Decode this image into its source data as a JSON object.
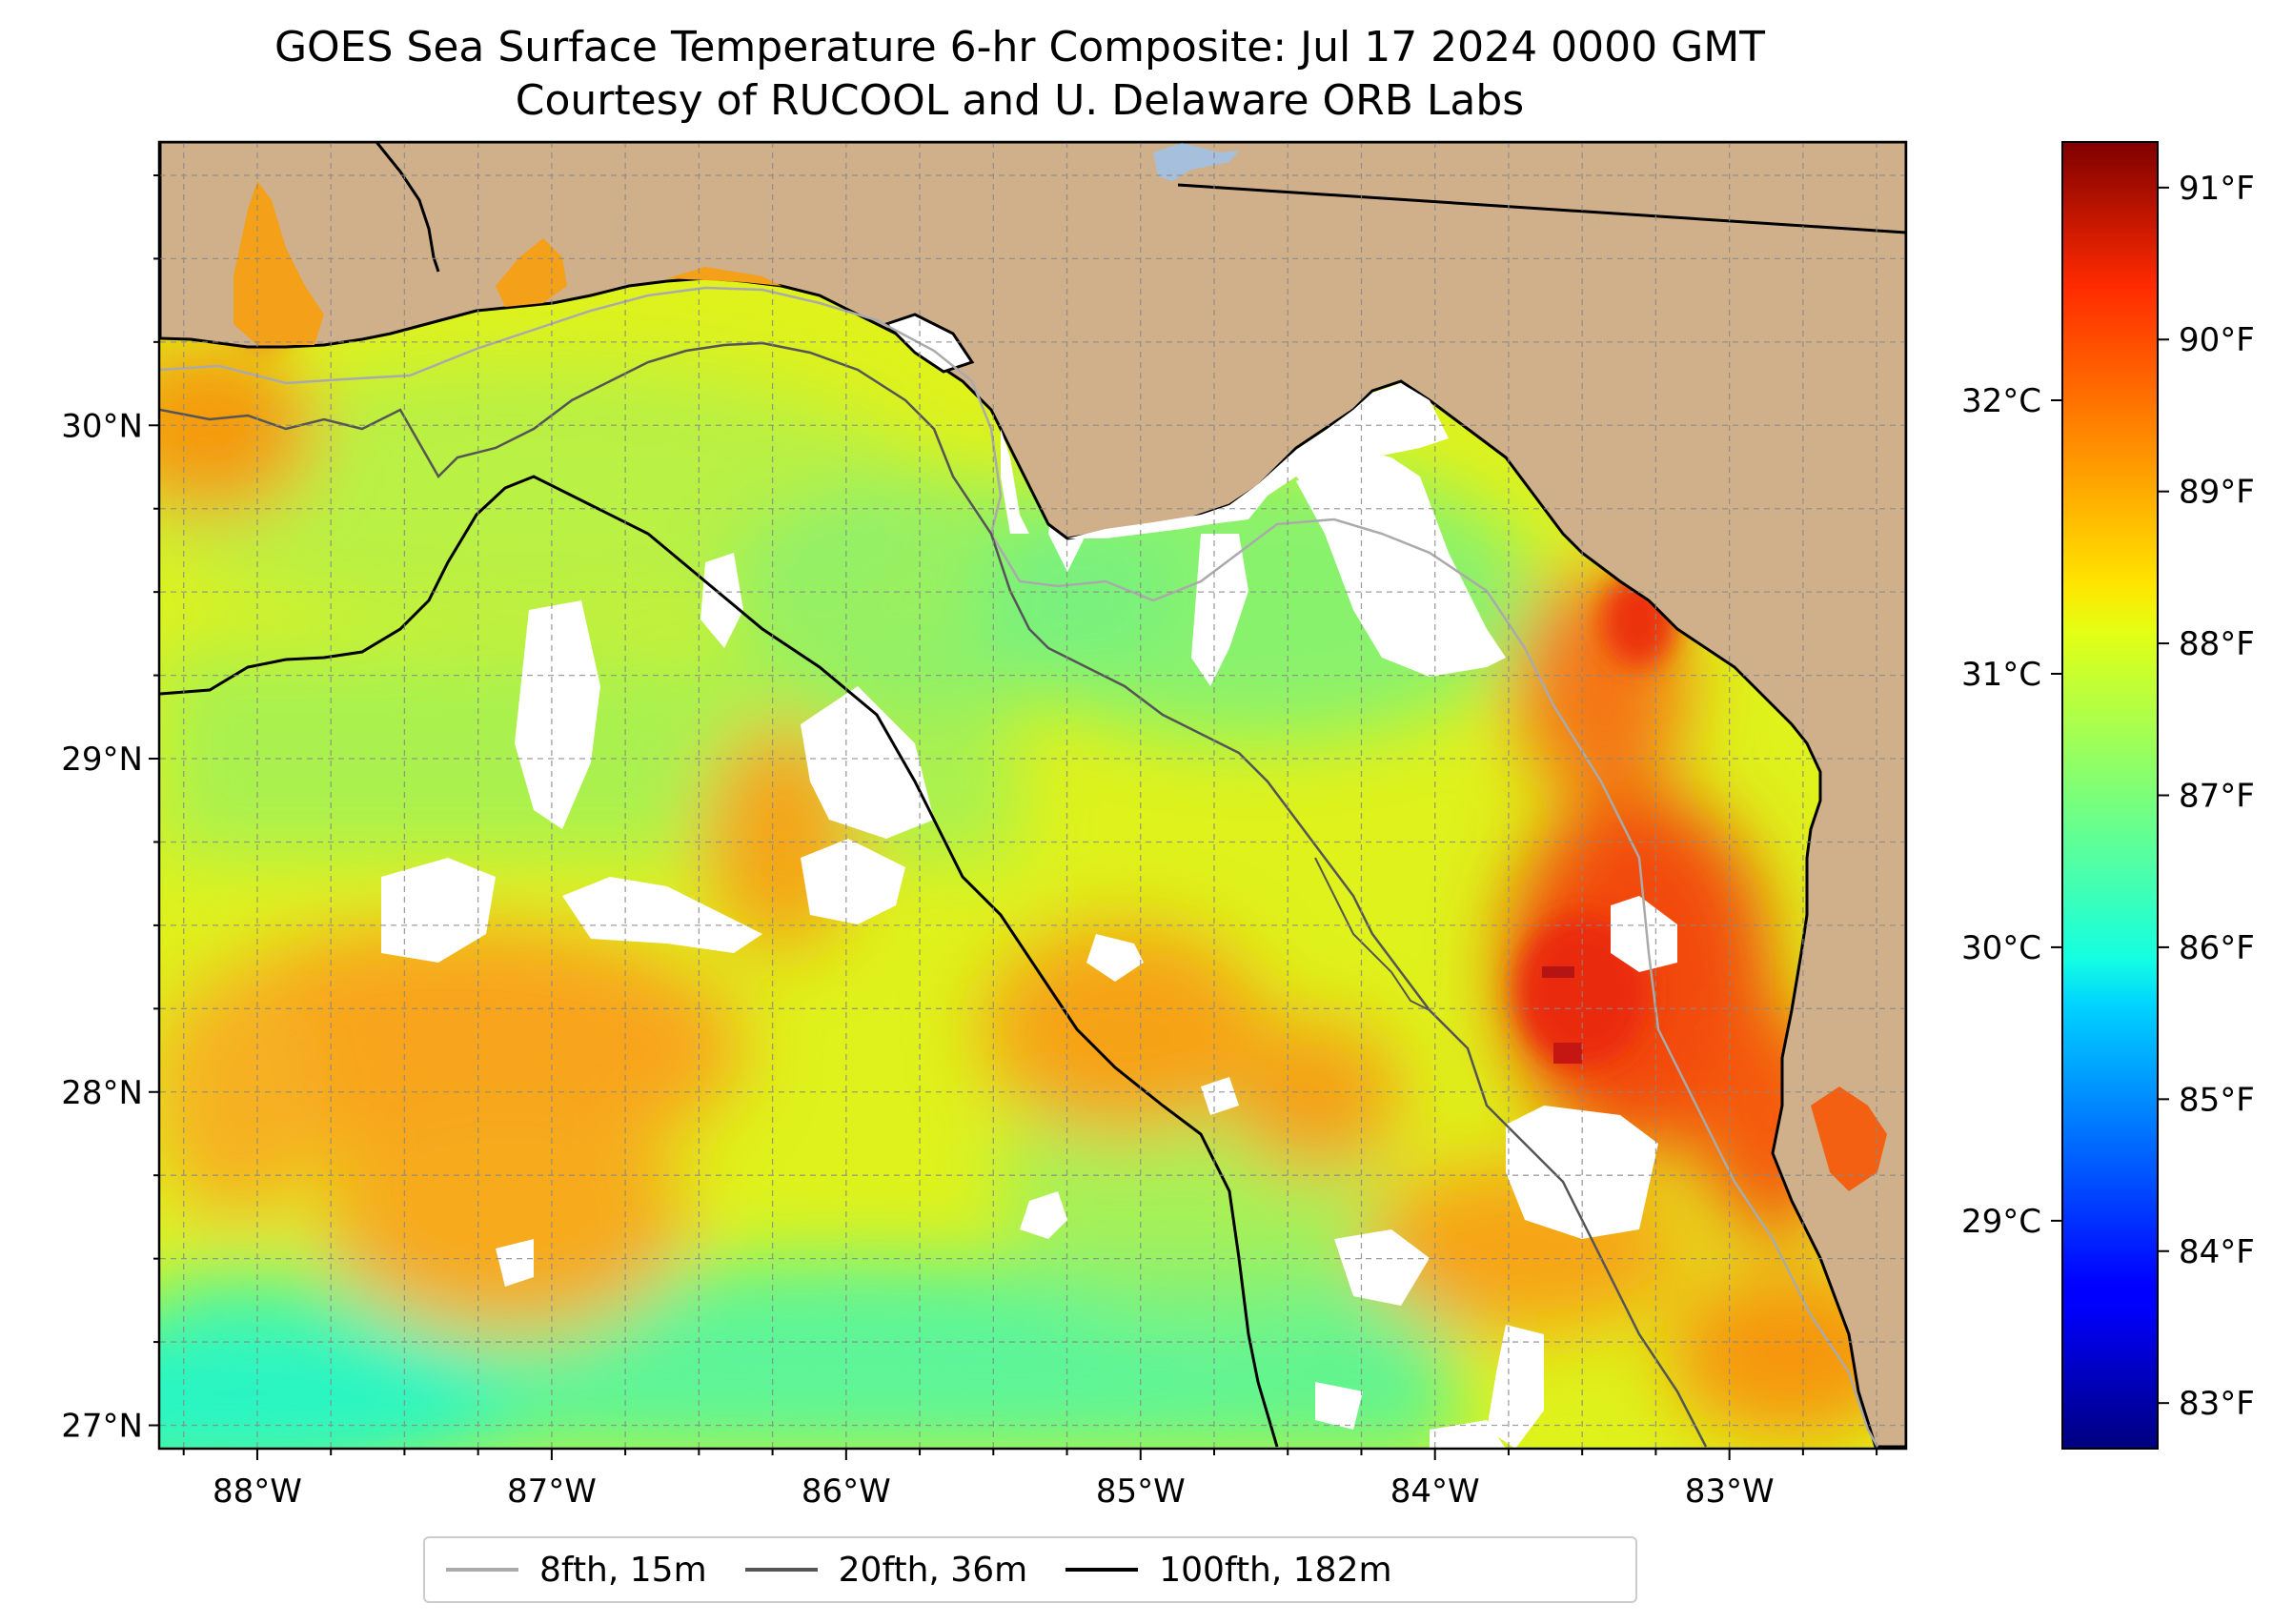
{
  "title": "GOES Sea Surface Temperature 6-hr Composite: Jul 17 2024 0000 GMT",
  "subtitle": "Courtesy of RUCOOL and U. Delaware ORB Labs",
  "map": {
    "lon_range": [
      -88.33,
      -82.4
    ],
    "lat_range": [
      26.93,
      30.85
    ],
    "lon_ticks": [
      {
        "value": -88,
        "label": "88°W"
      },
      {
        "value": -87,
        "label": "87°W"
      },
      {
        "value": -86,
        "label": "86°W"
      },
      {
        "value": -85,
        "label": "85°W"
      },
      {
        "value": -84,
        "label": "84°W"
      },
      {
        "value": -83,
        "label": "83°W"
      }
    ],
    "lat_ticks": [
      {
        "value": 30,
        "label": "30°N"
      },
      {
        "value": 29,
        "label": "29°N"
      },
      {
        "value": 28,
        "label": "28°N"
      },
      {
        "value": 27,
        "label": "27°N"
      }
    ],
    "gridlines": "dashed every 0.25°",
    "land_color": "#cfb08a",
    "water_body_color": "#a5bfdd",
    "no_data_color": "#ffffff",
    "colormap": "jet"
  },
  "colorbar": {
    "range_f": [
      82.7,
      91.3
    ],
    "fahrenheit_ticks": [
      {
        "value": 83,
        "label": "83°F"
      },
      {
        "value": 84,
        "label": "84°F"
      },
      {
        "value": 85,
        "label": "85°F"
      },
      {
        "value": 86,
        "label": "86°F"
      },
      {
        "value": 87,
        "label": "87°F"
      },
      {
        "value": 88,
        "label": "88°F"
      },
      {
        "value": 89,
        "label": "89°F"
      },
      {
        "value": 90,
        "label": "90°F"
      },
      {
        "value": 91,
        "label": "91°F"
      }
    ],
    "celsius_ticks": [
      {
        "value": 29,
        "label": "29°C"
      },
      {
        "value": 30,
        "label": "30°C"
      },
      {
        "value": 31,
        "label": "31°C"
      },
      {
        "value": 32,
        "label": "32°C"
      }
    ]
  },
  "legend": {
    "items": [
      {
        "label": "8fth, 15m",
        "color": "#aaaaaa"
      },
      {
        "label": "20fth, 36m",
        "color": "#555555"
      },
      {
        "label": "100fth, 182m",
        "color": "#000000"
      }
    ]
  }
}
